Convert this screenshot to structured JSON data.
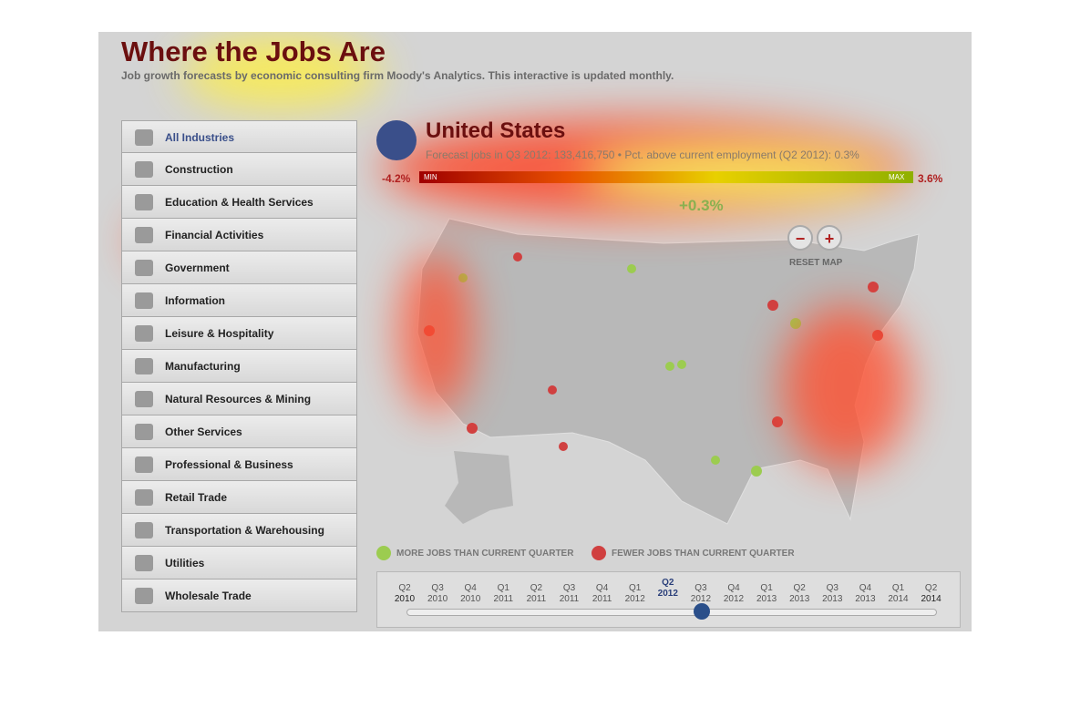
{
  "header": {
    "title": "Where the Jobs Are",
    "subtitle": "Job growth forecasts by economic consulting firm Moody's Analytics. This interactive is updated monthly."
  },
  "industries": [
    "All Industries",
    "Construction",
    "Education & Health Services",
    "Financial Activities",
    "Government",
    "Information",
    "Leisure & Hospitality",
    "Manufacturing",
    "Natural Resources & Mining",
    "Other Services",
    "Professional & Business",
    "Retail Trade",
    "Transportation & Warehousing",
    "Utilities",
    "Wholesale Trade"
  ],
  "region": {
    "name": "United States",
    "detail": "Forecast jobs in Q3 2012: 133,416,750 • Pct. above current employment (Q2 2012): 0.3%"
  },
  "scale": {
    "min": "-4.2%",
    "max": "3.6%",
    "min_tag": "MIN",
    "max_tag": "MAX",
    "current": "+0.3%"
  },
  "zoom": {
    "out": "−",
    "in": "+",
    "reset": "RESET MAP"
  },
  "legend": [
    "MORE JOBS THAN CURRENT QUARTER",
    "FEWER JOBS THAN CURRENT QUARTER"
  ],
  "timeline": [
    {
      "q": "Q2",
      "y": "2010"
    },
    {
      "q": "Q3",
      "y": "2010"
    },
    {
      "q": "Q4",
      "y": "2010"
    },
    {
      "q": "Q1",
      "y": "2011"
    },
    {
      "q": "Q2",
      "y": "2011"
    },
    {
      "q": "Q3",
      "y": "2011"
    },
    {
      "q": "Q4",
      "y": "2011"
    },
    {
      "q": "Q1",
      "y": "2012"
    },
    {
      "q": "Q2",
      "y": "2012"
    },
    {
      "q": "Q3",
      "y": "2012"
    },
    {
      "q": "Q4",
      "y": "2012"
    },
    {
      "q": "Q1",
      "y": "2013"
    },
    {
      "q": "Q2",
      "y": "2013"
    },
    {
      "q": "Q3",
      "y": "2013"
    },
    {
      "q": "Q4",
      "y": "2013"
    },
    {
      "q": "Q1",
      "y": "2014"
    },
    {
      "q": "Q2",
      "y": "2014"
    }
  ]
}
